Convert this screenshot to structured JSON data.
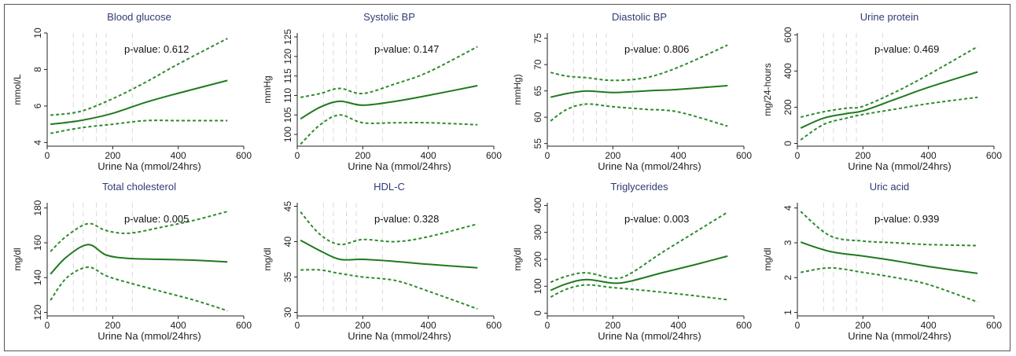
{
  "chart_data": [
    {
      "type": "line",
      "title": "Blood glucose",
      "annotation": "p-value: 0.612",
      "xlabel": "Urine Na (mmol/24hrs)",
      "ylabel": "mmol/L",
      "xlim": [
        0,
        600
      ],
      "ylim": [
        3.8,
        10
      ],
      "xticks": [
        0,
        200,
        400,
        600
      ],
      "yticks": [
        4,
        6,
        8,
        10
      ],
      "ref_lines_x": [
        80,
        110,
        150,
        180,
        260
      ],
      "series": [
        {
          "style": "solid",
          "x": [
            10,
            100,
            200,
            300,
            400,
            550
          ],
          "y": [
            5.0,
            5.2,
            5.6,
            6.2,
            6.7,
            7.4
          ]
        },
        {
          "style": "dashed",
          "x": [
            10,
            100,
            200,
            300,
            400,
            550
          ],
          "y": [
            5.5,
            5.7,
            6.4,
            7.3,
            8.3,
            9.7
          ]
        },
        {
          "style": "dashed",
          "x": [
            10,
            100,
            200,
            300,
            400,
            550
          ],
          "y": [
            4.5,
            4.8,
            5.0,
            5.2,
            5.2,
            5.2
          ]
        }
      ]
    },
    {
      "type": "line",
      "title": "Systolic BP",
      "annotation": "p-value: 0.147",
      "xlabel": "Urine Na (mmol/24hrs)",
      "ylabel": "mmHg",
      "xlim": [
        0,
        600
      ],
      "ylim": [
        97,
        126
      ],
      "xticks": [
        0,
        200,
        400,
        600
      ],
      "yticks": [
        100,
        105,
        110,
        115,
        120,
        125
      ],
      "ref_lines_x": [
        80,
        110,
        150,
        180,
        260
      ],
      "series": [
        {
          "style": "solid",
          "x": [
            10,
            70,
            130,
            200,
            300,
            400,
            550
          ],
          "y": [
            104,
            107,
            108.5,
            107.5,
            108.5,
            110,
            112.5
          ]
        },
        {
          "style": "dashed",
          "x": [
            10,
            70,
            130,
            200,
            300,
            400,
            550
          ],
          "y": [
            109.5,
            110.5,
            111.8,
            110.5,
            113,
            116,
            122.5
          ]
        },
        {
          "style": "dashed",
          "x": [
            10,
            70,
            130,
            200,
            300,
            400,
            550
          ],
          "y": [
            97.5,
            102.5,
            105,
            103,
            103,
            103,
            102.5
          ]
        }
      ]
    },
    {
      "type": "line",
      "title": "Diastolic BP",
      "annotation": "p-value: 0.806",
      "xlabel": "Urine Na (mmol/24hrs)",
      "ylabel": "mmHg)",
      "xlim": [
        0,
        600
      ],
      "ylim": [
        54.5,
        76
      ],
      "xticks": [
        0,
        200,
        400,
        600
      ],
      "yticks": [
        55,
        60,
        65,
        70,
        75
      ],
      "ref_lines_x": [
        80,
        110,
        150,
        180,
        260
      ],
      "series": [
        {
          "style": "solid",
          "x": [
            10,
            60,
            120,
            200,
            300,
            400,
            550
          ],
          "y": [
            63.8,
            64.5,
            65.0,
            64.7,
            65.0,
            65.3,
            66.0
          ]
        },
        {
          "style": "dashed",
          "x": [
            10,
            60,
            120,
            200,
            300,
            400,
            550
          ],
          "y": [
            68.5,
            67.8,
            67.5,
            67.0,
            67.5,
            69.5,
            73.7
          ]
        },
        {
          "style": "dashed",
          "x": [
            10,
            60,
            120,
            200,
            300,
            400,
            550
          ],
          "y": [
            59.3,
            61.5,
            62.5,
            62.0,
            61.5,
            61.0,
            58.3
          ]
        }
      ]
    },
    {
      "type": "line",
      "title": "Urine protein",
      "annotation": "p-value: 0.469",
      "xlabel": "Urine Na (mmol/24hrs)",
      "ylabel": "mg/24-hours",
      "xlim": [
        0,
        600
      ],
      "ylim": [
        -15,
        610
      ],
      "xticks": [
        0,
        200,
        400,
        600
      ],
      "yticks": [
        0,
        200,
        400,
        600
      ],
      "ref_lines_x": [
        80,
        110,
        150,
        180,
        260
      ],
      "series": [
        {
          "style": "solid",
          "x": [
            10,
            80,
            150,
            200,
            300,
            400,
            550
          ],
          "y": [
            85,
            140,
            165,
            180,
            245,
            310,
            395
          ]
        },
        {
          "style": "dashed",
          "x": [
            10,
            80,
            150,
            200,
            300,
            400,
            550
          ],
          "y": [
            145,
            175,
            195,
            205,
            285,
            380,
            535
          ]
        },
        {
          "style": "dashed",
          "x": [
            10,
            80,
            150,
            200,
            300,
            400,
            550
          ],
          "y": [
            20,
            105,
            140,
            160,
            190,
            220,
            255
          ]
        }
      ]
    },
    {
      "type": "line",
      "title": "Total cholesterol",
      "annotation": "p-value: 0.005",
      "xlabel": "Urine Na (mmol/24hrs)",
      "ylabel": "mg/dl",
      "xlim": [
        0,
        600
      ],
      "ylim": [
        118,
        183
      ],
      "xticks": [
        0,
        200,
        400,
        600
      ],
      "yticks": [
        120,
        140,
        160,
        180
      ],
      "ref_lines_x": [
        80,
        110,
        150,
        180,
        260
      ],
      "series": [
        {
          "style": "solid",
          "x": [
            10,
            60,
            125,
            180,
            250,
            350,
            450,
            550
          ],
          "y": [
            142,
            152,
            159,
            153,
            151,
            150.5,
            150,
            149
          ]
        },
        {
          "style": "dashed",
          "x": [
            10,
            60,
            125,
            180,
            250,
            350,
            450,
            550
          ],
          "y": [
            155,
            164,
            171,
            167,
            165.5,
            169,
            173,
            178
          ]
        },
        {
          "style": "dashed",
          "x": [
            10,
            60,
            125,
            180,
            250,
            350,
            450,
            550
          ],
          "y": [
            127,
            140,
            146,
            141,
            137,
            132,
            127,
            121
          ]
        }
      ]
    },
    {
      "type": "line",
      "title": "HDL-C",
      "annotation": "p-value: 0.328",
      "xlabel": "Urine Na (mmol/24hrs)",
      "ylabel": "mg/dl",
      "xlim": [
        0,
        600
      ],
      "ylim": [
        29.5,
        45.5
      ],
      "xticks": [
        0,
        200,
        400,
        600
      ],
      "yticks": [
        30,
        35,
        40,
        45
      ],
      "ref_lines_x": [
        80,
        110,
        150,
        180,
        260
      ],
      "series": [
        {
          "style": "solid",
          "x": [
            10,
            70,
            130,
            200,
            300,
            400,
            550
          ],
          "y": [
            40.2,
            38.7,
            37.5,
            37.5,
            37.2,
            36.8,
            36.3
          ]
        },
        {
          "style": "dashed",
          "x": [
            10,
            70,
            130,
            200,
            300,
            400,
            550
          ],
          "y": [
            44.2,
            41.0,
            39.6,
            40.3,
            40.0,
            40.7,
            42.5
          ]
        },
        {
          "style": "dashed",
          "x": [
            10,
            70,
            130,
            200,
            300,
            400,
            550
          ],
          "y": [
            36.0,
            36.0,
            35.5,
            35.0,
            34.5,
            33.0,
            30.5
          ]
        }
      ]
    },
    {
      "type": "line",
      "title": "Triglycerides",
      "annotation": "p-value: 0.003",
      "xlabel": "Urine Na (mmol/24hrs)",
      "ylabel": "mg/dl",
      "xlim": [
        0,
        600
      ],
      "ylim": [
        -10,
        410
      ],
      "xticks": [
        0,
        200,
        400,
        600
      ],
      "yticks": [
        0,
        100,
        200,
        300,
        400
      ],
      "ref_lines_x": [
        80,
        110,
        150,
        180,
        260
      ],
      "series": [
        {
          "style": "solid",
          "x": [
            10,
            60,
            120,
            200,
            250,
            350,
            450,
            550
          ],
          "y": [
            85,
            110,
            125,
            112,
            118,
            150,
            180,
            212
          ]
        },
        {
          "style": "dashed",
          "x": [
            10,
            60,
            120,
            200,
            250,
            350,
            450,
            550
          ],
          "y": [
            115,
            138,
            150,
            130,
            145,
            225,
            300,
            375
          ]
        },
        {
          "style": "dashed",
          "x": [
            10,
            60,
            120,
            200,
            250,
            350,
            450,
            550
          ],
          "y": [
            60,
            90,
            105,
            95,
            90,
            78,
            65,
            50
          ]
        }
      ]
    },
    {
      "type": "line",
      "title": "Uric acid",
      "annotation": "p-value: 0.939",
      "xlabel": "Urine Na (mmol/24hrs)",
      "ylabel": "mg/dl",
      "xlim": [
        0,
        600
      ],
      "ylim": [
        0.9,
        4.15
      ],
      "xticks": [
        0,
        200,
        400,
        600
      ],
      "yticks": [
        1,
        2,
        3,
        4
      ],
      "ref_lines_x": [
        80,
        110,
        150,
        180,
        260
      ],
      "series": [
        {
          "style": "solid",
          "x": [
            10,
            100,
            200,
            300,
            400,
            550
          ],
          "y": [
            3.02,
            2.75,
            2.62,
            2.48,
            2.32,
            2.12
          ]
        },
        {
          "style": "dashed",
          "x": [
            10,
            100,
            200,
            300,
            400,
            550
          ],
          "y": [
            3.9,
            3.2,
            3.05,
            3.0,
            2.95,
            2.92
          ]
        },
        {
          "style": "dashed",
          "x": [
            10,
            100,
            200,
            300,
            400,
            550
          ],
          "y": [
            2.15,
            2.28,
            2.15,
            2.0,
            1.8,
            1.3
          ]
        }
      ]
    }
  ]
}
